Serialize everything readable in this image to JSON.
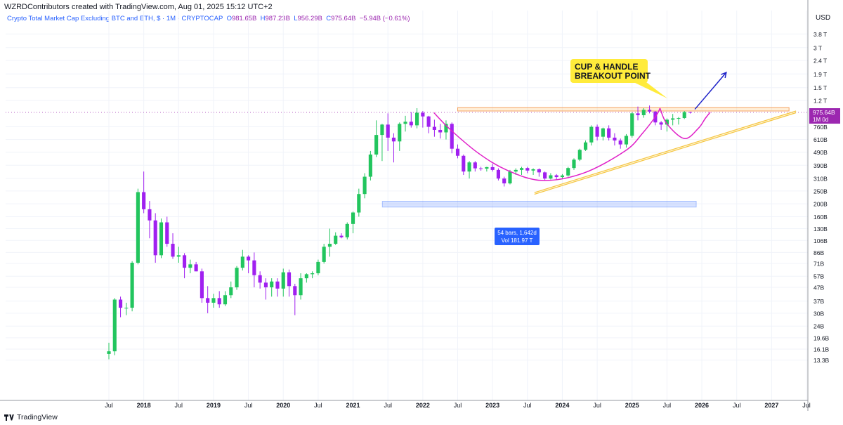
{
  "header": {
    "creator_line": "WZRDContributors created with TradingView.com, Aug 01, 2025 15:12 UTC+2",
    "symbol_line": "Crypto Total Market Cap Excluding BTC and ETH, $ · 1M · CRYPTOCAP",
    "ohlc": {
      "o_label": "O",
      "o": "981.65B",
      "h_label": "H",
      "h": "987.23B",
      "l_label": "L",
      "l": "956.29B",
      "c_label": "C",
      "c": "975.64B",
      "change": "−5.94B (−0.61%)"
    }
  },
  "axis": {
    "currency": "USD",
    "price_ticks": [
      "3.8 T",
      "3 T",
      "2.4 T",
      "1.9 T",
      "1.5 T",
      "1.2 T",
      "760B",
      "610B",
      "490B",
      "390B",
      "310B",
      "250B",
      "200B",
      "160B",
      "130B",
      "106B",
      "86B",
      "71B",
      "57B",
      "47B",
      "37B",
      "30B",
      "24B",
      "19.6B",
      "16.1B",
      "13.3B"
    ],
    "price_tick_values": [
      3.8,
      3.0,
      2.4,
      1.9,
      1.5,
      1.2,
      0.76,
      0.61,
      0.49,
      0.39,
      0.31,
      0.25,
      0.2,
      0.16,
      0.13,
      0.106,
      0.086,
      0.071,
      0.057,
      0.047,
      0.037,
      0.03,
      0.024,
      0.0196,
      0.0161,
      0.0133
    ],
    "time_ticks": [
      {
        "label": "Jul",
        "t": 2017.5,
        "bold": false
      },
      {
        "label": "2018",
        "t": 2018.0,
        "bold": true
      },
      {
        "label": "Jul",
        "t": 2018.5,
        "bold": false
      },
      {
        "label": "2019",
        "t": 2019.0,
        "bold": true
      },
      {
        "label": "Jul",
        "t": 2019.5,
        "bold": false
      },
      {
        "label": "2020",
        "t": 2020.0,
        "bold": true
      },
      {
        "label": "Jul",
        "t": 2020.5,
        "bold": false
      },
      {
        "label": "2021",
        "t": 2021.0,
        "bold": true
      },
      {
        "label": "Jul",
        "t": 2021.5,
        "bold": false
      },
      {
        "label": "2022",
        "t": 2022.0,
        "bold": true
      },
      {
        "label": "Jul",
        "t": 2022.5,
        "bold": false
      },
      {
        "label": "2023",
        "t": 2023.0,
        "bold": true
      },
      {
        "label": "Jul",
        "t": 2023.5,
        "bold": false
      },
      {
        "label": "2024",
        "t": 2024.0,
        "bold": true
      },
      {
        "label": "Jul",
        "t": 2024.5,
        "bold": false
      },
      {
        "label": "2025",
        "t": 2025.0,
        "bold": true
      },
      {
        "label": "Jul",
        "t": 2025.5,
        "bold": false
      },
      {
        "label": "2026",
        "t": 2026.0,
        "bold": true
      },
      {
        "label": "Jul",
        "t": 2026.5,
        "bold": false
      },
      {
        "label": "2027",
        "t": 2027.0,
        "bold": true
      },
      {
        "label": "Jul",
        "t": 2027.5,
        "bold": false
      }
    ]
  },
  "last_price": {
    "label": "975.64B",
    "countdown": "1M 0d",
    "value": 0.97564,
    "color": "#9c27b0"
  },
  "annotations": {
    "callout_line1": "CUP & HANDLE",
    "callout_line2": "BREAKOUT POINT",
    "callout_color": "#ffeb3b",
    "range_line1": "54 bars, 1,642d",
    "range_line2": "Vol 181.97 T",
    "range_color": "#2962ff"
  },
  "colors": {
    "up": "#22c55e",
    "down": "#a020f0",
    "cup": "#e020c8",
    "trend": "#f5c542",
    "resistance": "#f4a261",
    "arrow": "#1e22c8"
  },
  "footer": {
    "brand": "TradingView"
  },
  "chart_data": {
    "type": "candlestick",
    "title": "Crypto Total Market Cap Excluding BTC and ETH, $ · 1M · CRYPTOCAP",
    "x_unit": "year (monthly candles)",
    "y_unit": "USD trillions",
    "y_scale": "log",
    "ylim": [
      0.012,
      4.2
    ],
    "xlim": [
      2017.5,
      2027.55
    ],
    "candles": [
      {
        "t": "2017-07",
        "o": 0.0148,
        "h": 0.018,
        "l": 0.0135,
        "c": 0.0155
      },
      {
        "t": "2017-08",
        "o": 0.0155,
        "h": 0.039,
        "l": 0.0145,
        "c": 0.038
      },
      {
        "t": "2017-09",
        "o": 0.038,
        "h": 0.04,
        "l": 0.028,
        "c": 0.033
      },
      {
        "t": "2017-10",
        "o": 0.033,
        "h": 0.036,
        "l": 0.029,
        "c": 0.033
      },
      {
        "t": "2017-11",
        "o": 0.033,
        "h": 0.074,
        "l": 0.031,
        "c": 0.072
      },
      {
        "t": "2017-12",
        "o": 0.072,
        "h": 0.26,
        "l": 0.07,
        "c": 0.245
      },
      {
        "t": "2018-01",
        "o": 0.245,
        "h": 0.35,
        "l": 0.17,
        "c": 0.182
      },
      {
        "t": "2018-02",
        "o": 0.182,
        "h": 0.21,
        "l": 0.11,
        "c": 0.15
      },
      {
        "t": "2018-03",
        "o": 0.15,
        "h": 0.17,
        "l": 0.072,
        "c": 0.082
      },
      {
        "t": "2018-04",
        "o": 0.082,
        "h": 0.155,
        "l": 0.078,
        "c": 0.145
      },
      {
        "t": "2018-05",
        "o": 0.145,
        "h": 0.16,
        "l": 0.095,
        "c": 0.1
      },
      {
        "t": "2018-06",
        "o": 0.1,
        "h": 0.12,
        "l": 0.077,
        "c": 0.08
      },
      {
        "t": "2018-07",
        "o": 0.08,
        "h": 0.095,
        "l": 0.072,
        "c": 0.082
      },
      {
        "t": "2018-08",
        "o": 0.082,
        "h": 0.085,
        "l": 0.055,
        "c": 0.066
      },
      {
        "t": "2018-09",
        "o": 0.066,
        "h": 0.076,
        "l": 0.06,
        "c": 0.07
      },
      {
        "t": "2018-10",
        "o": 0.07,
        "h": 0.073,
        "l": 0.062,
        "c": 0.062
      },
      {
        "t": "2018-11",
        "o": 0.062,
        "h": 0.065,
        "l": 0.036,
        "c": 0.039
      },
      {
        "t": "2018-12",
        "o": 0.039,
        "h": 0.048,
        "l": 0.03,
        "c": 0.036
      },
      {
        "t": "2019-01",
        "o": 0.036,
        "h": 0.042,
        "l": 0.033,
        "c": 0.039
      },
      {
        "t": "2019-02",
        "o": 0.039,
        "h": 0.044,
        "l": 0.033,
        "c": 0.035
      },
      {
        "t": "2019-03",
        "o": 0.035,
        "h": 0.044,
        "l": 0.034,
        "c": 0.041
      },
      {
        "t": "2019-04",
        "o": 0.041,
        "h": 0.052,
        "l": 0.039,
        "c": 0.047
      },
      {
        "t": "2019-05",
        "o": 0.047,
        "h": 0.068,
        "l": 0.045,
        "c": 0.066
      },
      {
        "t": "2019-06",
        "o": 0.066,
        "h": 0.09,
        "l": 0.063,
        "c": 0.08
      },
      {
        "t": "2019-07",
        "o": 0.08,
        "h": 0.082,
        "l": 0.06,
        "c": 0.075
      },
      {
        "t": "2019-08",
        "o": 0.075,
        "h": 0.086,
        "l": 0.047,
        "c": 0.058
      },
      {
        "t": "2019-09",
        "o": 0.058,
        "h": 0.062,
        "l": 0.046,
        "c": 0.051
      },
      {
        "t": "2019-10",
        "o": 0.051,
        "h": 0.055,
        "l": 0.038,
        "c": 0.047
      },
      {
        "t": "2019-11",
        "o": 0.047,
        "h": 0.055,
        "l": 0.04,
        "c": 0.052
      },
      {
        "t": "2019-12",
        "o": 0.052,
        "h": 0.055,
        "l": 0.04,
        "c": 0.046
      },
      {
        "t": "2020-01",
        "o": 0.046,
        "h": 0.065,
        "l": 0.04,
        "c": 0.061
      },
      {
        "t": "2020-02",
        "o": 0.061,
        "h": 0.064,
        "l": 0.04,
        "c": 0.048
      },
      {
        "t": "2020-03",
        "o": 0.048,
        "h": 0.05,
        "l": 0.029,
        "c": 0.041
      },
      {
        "t": "2020-04",
        "o": 0.041,
        "h": 0.06,
        "l": 0.038,
        "c": 0.055
      },
      {
        "t": "2020-05",
        "o": 0.055,
        "h": 0.06,
        "l": 0.051,
        "c": 0.059
      },
      {
        "t": "2020-06",
        "o": 0.059,
        "h": 0.062,
        "l": 0.055,
        "c": 0.06
      },
      {
        "t": "2020-07",
        "o": 0.06,
        "h": 0.076,
        "l": 0.058,
        "c": 0.073
      },
      {
        "t": "2020-08",
        "o": 0.073,
        "h": 0.1,
        "l": 0.071,
        "c": 0.095
      },
      {
        "t": "2020-09",
        "o": 0.095,
        "h": 0.13,
        "l": 0.08,
        "c": 0.1
      },
      {
        "t": "2020-10",
        "o": 0.1,
        "h": 0.122,
        "l": 0.098,
        "c": 0.115
      },
      {
        "t": "2020-11",
        "o": 0.115,
        "h": 0.12,
        "l": 0.11,
        "c": 0.112
      },
      {
        "t": "2020-12",
        "o": 0.112,
        "h": 0.145,
        "l": 0.108,
        "c": 0.141
      },
      {
        "t": "2021-01",
        "o": 0.141,
        "h": 0.175,
        "l": 0.12,
        "c": 0.172
      },
      {
        "t": "2021-02",
        "o": 0.172,
        "h": 0.26,
        "l": 0.16,
        "c": 0.237
      },
      {
        "t": "2021-03",
        "o": 0.237,
        "h": 0.34,
        "l": 0.22,
        "c": 0.32
      },
      {
        "t": "2021-04",
        "o": 0.32,
        "h": 0.5,
        "l": 0.3,
        "c": 0.47
      },
      {
        "t": "2021-05",
        "o": 0.47,
        "h": 0.85,
        "l": 0.45,
        "c": 0.66
      },
      {
        "t": "2021-06",
        "o": 0.66,
        "h": 0.8,
        "l": 0.42,
        "c": 0.79
      },
      {
        "t": "2021-07",
        "o": 0.79,
        "h": 0.96,
        "l": 0.5,
        "c": 0.63
      },
      {
        "t": "2021-08",
        "o": 0.63,
        "h": 0.68,
        "l": 0.41,
        "c": 0.59
      },
      {
        "t": "2021-09",
        "o": 0.59,
        "h": 0.82,
        "l": 0.5,
        "c": 0.8
      },
      {
        "t": "2021-10",
        "o": 0.8,
        "h": 0.92,
        "l": 0.7,
        "c": 0.83
      },
      {
        "t": "2021-11",
        "o": 0.83,
        "h": 0.98,
        "l": 0.75,
        "c": 0.78
      },
      {
        "t": "2021-12",
        "o": 0.78,
        "h": 1.05,
        "l": 0.74,
        "c": 0.97
      },
      {
        "t": "2022-01",
        "o": 0.97,
        "h": 1.0,
        "l": 0.75,
        "c": 0.91
      },
      {
        "t": "2022-02",
        "o": 0.91,
        "h": 0.92,
        "l": 0.68,
        "c": 0.76
      },
      {
        "t": "2022-03",
        "o": 0.76,
        "h": 0.86,
        "l": 0.64,
        "c": 0.72
      },
      {
        "t": "2022-04",
        "o": 0.72,
        "h": 0.8,
        "l": 0.62,
        "c": 0.69
      },
      {
        "t": "2022-05",
        "o": 0.69,
        "h": 0.85,
        "l": 0.61,
        "c": 0.8
      },
      {
        "t": "2022-06",
        "o": 0.8,
        "h": 0.82,
        "l": 0.48,
        "c": 0.52
      },
      {
        "t": "2022-07",
        "o": 0.52,
        "h": 0.56,
        "l": 0.44,
        "c": 0.46
      },
      {
        "t": "2022-08",
        "o": 0.46,
        "h": 0.47,
        "l": 0.33,
        "c": 0.35
      },
      {
        "t": "2022-09",
        "o": 0.35,
        "h": 0.42,
        "l": 0.31,
        "c": 0.41
      },
      {
        "t": "2022-10",
        "o": 0.41,
        "h": 0.42,
        "l": 0.35,
        "c": 0.37
      },
      {
        "t": "2022-11",
        "o": 0.37,
        "h": 0.38,
        "l": 0.355,
        "c": 0.368
      },
      {
        "t": "2022-12",
        "o": 0.368,
        "h": 0.38,
        "l": 0.35,
        "c": 0.378
      },
      {
        "t": "2023-01",
        "o": 0.378,
        "h": 0.4,
        "l": 0.35,
        "c": 0.36
      },
      {
        "t": "2023-02",
        "o": 0.36,
        "h": 0.37,
        "l": 0.3,
        "c": 0.31
      },
      {
        "t": "2023-03",
        "o": 0.31,
        "h": 0.32,
        "l": 0.27,
        "c": 0.285
      },
      {
        "t": "2023-04",
        "o": 0.285,
        "h": 0.36,
        "l": 0.28,
        "c": 0.35
      },
      {
        "t": "2023-05",
        "o": 0.35,
        "h": 0.37,
        "l": 0.33,
        "c": 0.36
      },
      {
        "t": "2023-06",
        "o": 0.36,
        "h": 0.38,
        "l": 0.33,
        "c": 0.372
      },
      {
        "t": "2023-07",
        "o": 0.372,
        "h": 0.38,
        "l": 0.34,
        "c": 0.356
      },
      {
        "t": "2023-08",
        "o": 0.356,
        "h": 0.37,
        "l": 0.33,
        "c": 0.364
      },
      {
        "t": "2023-09",
        "o": 0.364,
        "h": 0.37,
        "l": 0.32,
        "c": 0.345
      },
      {
        "t": "2023-10",
        "o": 0.345,
        "h": 0.35,
        "l": 0.3,
        "c": 0.31
      },
      {
        "t": "2023-11",
        "o": 0.31,
        "h": 0.34,
        "l": 0.305,
        "c": 0.328
      },
      {
        "t": "2023-12",
        "o": 0.328,
        "h": 0.335,
        "l": 0.305,
        "c": 0.318
      },
      {
        "t": "2024-01",
        "o": 0.318,
        "h": 0.335,
        "l": 0.31,
        "c": 0.327
      },
      {
        "t": "2024-02",
        "o": 0.327,
        "h": 0.38,
        "l": 0.32,
        "c": 0.372
      },
      {
        "t": "2024-03",
        "o": 0.372,
        "h": 0.44,
        "l": 0.36,
        "c": 0.43
      },
      {
        "t": "2024-04",
        "o": 0.43,
        "h": 0.52,
        "l": 0.42,
        "c": 0.51
      },
      {
        "t": "2024-05",
        "o": 0.51,
        "h": 0.6,
        "l": 0.5,
        "c": 0.58
      },
      {
        "t": "2024-06",
        "o": 0.58,
        "h": 0.78,
        "l": 0.55,
        "c": 0.76
      },
      {
        "t": "2024-07",
        "o": 0.76,
        "h": 0.79,
        "l": 0.6,
        "c": 0.64
      },
      {
        "t": "2024-08",
        "o": 0.64,
        "h": 0.75,
        "l": 0.6,
        "c": 0.74
      },
      {
        "t": "2024-09",
        "o": 0.74,
        "h": 0.78,
        "l": 0.6,
        "c": 0.63
      },
      {
        "t": "2024-10",
        "o": 0.63,
        "h": 0.68,
        "l": 0.55,
        "c": 0.6
      },
      {
        "t": "2024-11",
        "o": 0.6,
        "h": 0.62,
        "l": 0.52,
        "c": 0.56
      },
      {
        "t": "2024-12",
        "o": 0.56,
        "h": 0.67,
        "l": 0.53,
        "c": 0.65
      },
      {
        "t": "2025-01",
        "o": 0.65,
        "h": 0.98,
        "l": 0.63,
        "c": 0.96
      },
      {
        "t": "2025-02",
        "o": 0.96,
        "h": 1.08,
        "l": 0.85,
        "c": 0.93
      },
      {
        "t": "2025-03",
        "o": 0.93,
        "h": 1.05,
        "l": 0.89,
        "c": 1.02
      },
      {
        "t": "2025-04",
        "o": 1.02,
        "h": 1.1,
        "l": 0.96,
        "c": 0.99
      },
      {
        "t": "2025-05",
        "o": 0.99,
        "h": 1.0,
        "l": 0.78,
        "c": 0.82
      },
      {
        "t": "2025-06",
        "o": 0.82,
        "h": 0.84,
        "l": 0.72,
        "c": 0.79
      },
      {
        "t": "2025-07",
        "o": 0.79,
        "h": 0.88,
        "l": 0.7,
        "c": 0.86
      },
      {
        "t": "2025-08",
        "o": 0.86,
        "h": 0.95,
        "l": 0.78,
        "c": 0.88
      },
      {
        "t": "2025-09",
        "o": 0.88,
        "h": 0.9,
        "l": 0.79,
        "c": 0.885
      },
      {
        "t": "2025-10",
        "o": 0.885,
        "h": 1.0,
        "l": 0.87,
        "c": 0.9816
      },
      {
        "t": "2025-11",
        "o": 0.98165,
        "h": 0.98723,
        "l": 0.95629,
        "c": 0.97564
      }
    ],
    "overlays": {
      "resistance_zone": {
        "t1": 2022.5,
        "t2": 2027.25,
        "y_low": 1.0,
        "y_high": 1.06
      },
      "trend_line_upper": {
        "t1": 2023.6,
        "y1": 0.243,
        "t2": 2027.35,
        "y2": 1.0
      },
      "trend_line_lower": {
        "t1": 2023.6,
        "y1": 0.236,
        "t2": 2027.35,
        "y2": 0.97
      },
      "range_box": {
        "t1": 2021.42,
        "t2": 2025.92,
        "y_low": 0.189,
        "y_high": 0.209
      },
      "breakout_arrow": {
        "t1": 2025.9,
        "y1": 1.03,
        "t2": 2026.35,
        "y2": 1.95
      },
      "cup": [
        [
          2022.16,
          0.97
        ],
        [
          2022.4,
          0.72
        ],
        [
          2022.8,
          0.48
        ],
        [
          2023.2,
          0.36
        ],
        [
          2023.7,
          0.3
        ],
        [
          2024.3,
          0.34
        ],
        [
          2024.9,
          0.5
        ],
        [
          2025.15,
          0.68
        ],
        [
          2025.35,
          0.93
        ],
        [
          2025.4,
          1.05
        ]
      ],
      "handle": [
        [
          2025.4,
          1.05
        ],
        [
          2025.5,
          0.8
        ],
        [
          2025.75,
          0.62
        ],
        [
          2025.95,
          0.74
        ],
        [
          2026.05,
          0.88
        ],
        [
          2026.12,
          0.98
        ]
      ]
    }
  }
}
